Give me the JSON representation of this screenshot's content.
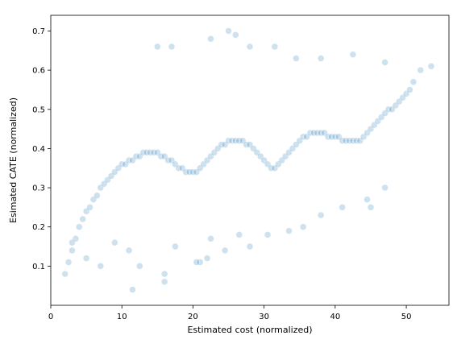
{
  "chart_data": {
    "type": "scatter",
    "title": "",
    "xlabel": "Estimated cost (normalized)",
    "ylabel": "Esimated CATE (normalized)",
    "xlim": [
      0.0,
      56.0
    ],
    "ylim": [
      0.0,
      0.74
    ],
    "xticks": [
      0,
      10,
      20,
      30,
      40,
      50
    ],
    "yticks": [
      0.1,
      0.2,
      0.3,
      0.4,
      0.5,
      0.6,
      0.7
    ],
    "xtick_labels": [
      "0",
      "10",
      "20",
      "30",
      "40",
      "50"
    ],
    "ytick_labels": [
      "0.1",
      "0.2",
      "0.3",
      "0.4",
      "0.5",
      "0.6",
      "0.7"
    ],
    "grid": false,
    "legend": "none",
    "marker_color": "#1f77b4",
    "marker_alpha": 0.22,
    "series": [
      {
        "x": [
          2.0,
          2.5,
          3.0,
          3.5,
          4.0,
          4.5,
          5.0,
          5.5,
          6.0,
          6.5,
          7.0,
          7.5,
          8.0,
          8.5,
          9.0,
          9.5,
          10.0,
          10.5,
          11.0,
          11.5,
          12.0,
          12.5,
          13.0,
          13.5,
          14.0,
          14.5,
          15.0,
          15.5,
          16.0,
          16.5,
          17.0,
          17.5,
          18.0,
          18.5,
          19.0,
          19.5,
          20.0,
          20.5,
          21.0,
          21.5,
          22.0,
          22.5,
          23.0,
          23.5,
          24.0,
          24.5,
          25.0,
          25.5,
          26.0,
          26.5,
          27.0,
          27.5,
          28.0,
          28.5,
          29.0,
          29.5,
          30.0,
          30.5,
          31.0,
          31.5,
          32.0,
          32.5,
          33.0,
          33.5,
          34.0,
          34.5,
          35.0,
          35.5,
          36.0,
          36.5,
          37.0,
          37.5,
          38.0,
          38.5,
          39.0,
          39.5,
          40.0,
          40.5,
          41.0,
          41.5,
          42.0,
          42.5,
          43.0,
          43.5,
          44.0,
          44.5,
          45.0,
          45.5,
          46.0,
          46.5,
          47.0,
          47.5,
          48.0,
          48.5,
          49.0,
          49.5,
          50.0,
          50.5,
          51.0,
          52.0,
          53.5,
          3.0,
          5.0,
          7.0,
          9.0,
          11.0,
          12.5,
          16.0,
          17.5,
          21.0,
          22.5,
          24.5,
          26.5,
          28.0,
          30.5,
          33.5,
          35.5,
          38.0,
          41.0,
          44.5,
          47.0,
          15.0,
          17.0,
          22.5,
          26.0,
          28.0,
          31.5,
          34.5,
          38.0,
          42.5,
          47.0,
          20.5,
          22.0,
          25.0,
          45.0,
          11.5,
          16.0
        ],
        "y": [
          0.08,
          0.11,
          0.14,
          0.17,
          0.2,
          0.22,
          0.24,
          0.25,
          0.27,
          0.28,
          0.3,
          0.31,
          0.32,
          0.33,
          0.34,
          0.35,
          0.36,
          0.36,
          0.37,
          0.37,
          0.38,
          0.38,
          0.39,
          0.39,
          0.39,
          0.39,
          0.39,
          0.38,
          0.38,
          0.37,
          0.37,
          0.36,
          0.35,
          0.35,
          0.34,
          0.34,
          0.34,
          0.34,
          0.35,
          0.36,
          0.37,
          0.38,
          0.39,
          0.4,
          0.41,
          0.41,
          0.42,
          0.42,
          0.42,
          0.42,
          0.42,
          0.41,
          0.41,
          0.4,
          0.39,
          0.38,
          0.37,
          0.36,
          0.35,
          0.35,
          0.36,
          0.37,
          0.38,
          0.39,
          0.4,
          0.41,
          0.42,
          0.43,
          0.43,
          0.44,
          0.44,
          0.44,
          0.44,
          0.44,
          0.43,
          0.43,
          0.43,
          0.43,
          0.42,
          0.42,
          0.42,
          0.42,
          0.42,
          0.42,
          0.43,
          0.44,
          0.45,
          0.46,
          0.47,
          0.48,
          0.49,
          0.5,
          0.5,
          0.51,
          0.52,
          0.53,
          0.54,
          0.55,
          0.57,
          0.6,
          0.61,
          0.16,
          0.12,
          0.1,
          0.16,
          0.14,
          0.1,
          0.08,
          0.15,
          0.11,
          0.17,
          0.14,
          0.18,
          0.15,
          0.18,
          0.19,
          0.2,
          0.23,
          0.25,
          0.27,
          0.3,
          0.66,
          0.66,
          0.68,
          0.69,
          0.66,
          0.66,
          0.63,
          0.63,
          0.64,
          0.62,
          0.11,
          0.12,
          0.7,
          0.25,
          0.04,
          0.06
        ]
      }
    ]
  }
}
